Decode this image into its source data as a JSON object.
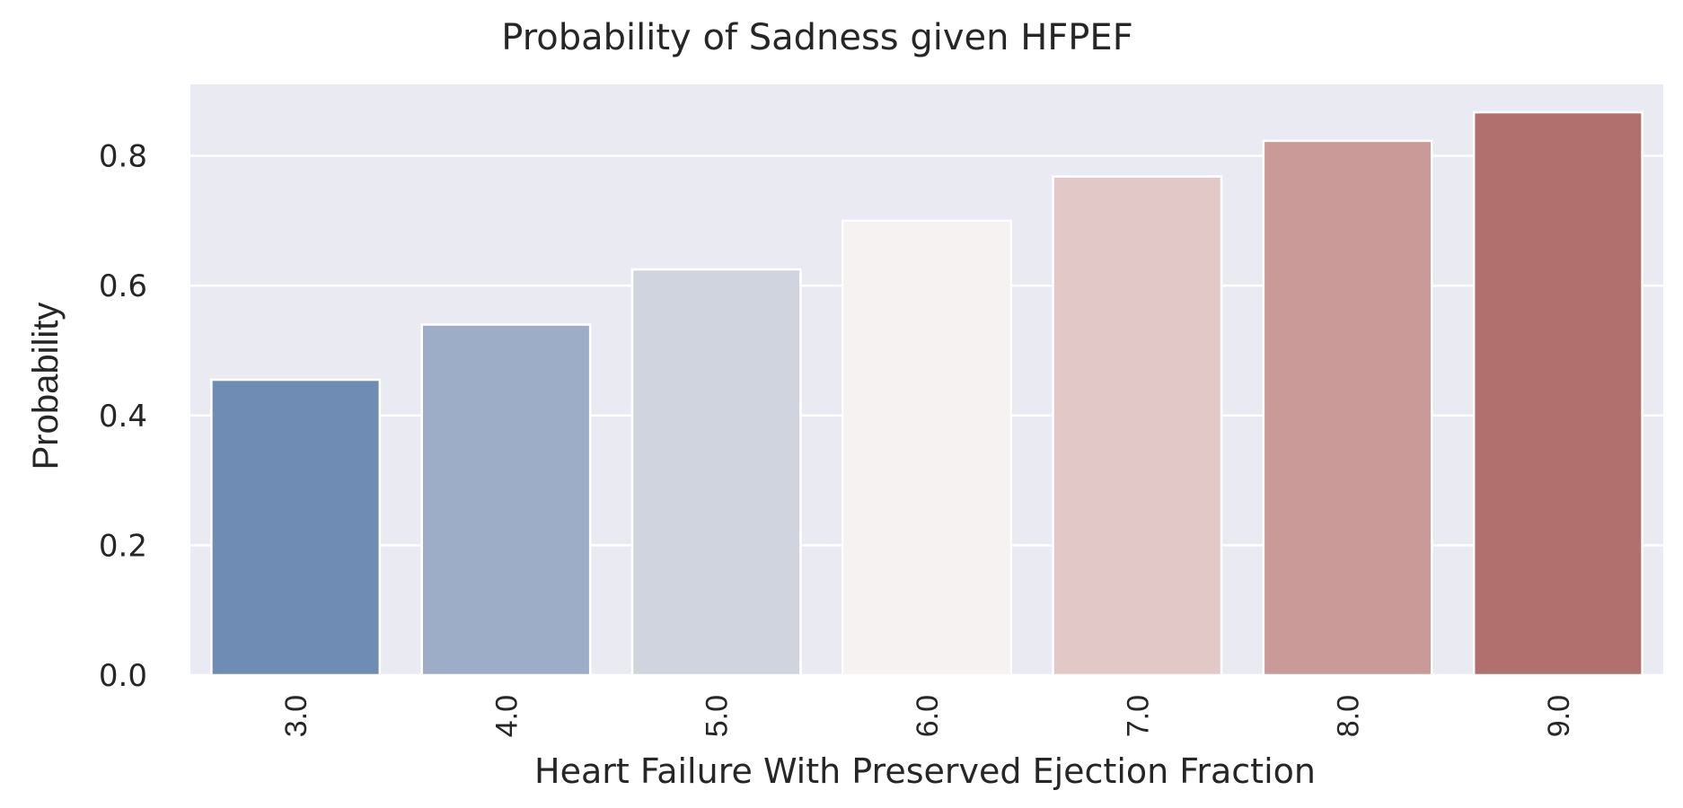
{
  "chart_data": {
    "type": "bar",
    "title": "Probability of Sadness given HFPEF",
    "xlabel": "Heart Failure With Preserved Ejection Fraction",
    "ylabel": "Probability",
    "categories": [
      "3.0",
      "4.0",
      "5.0",
      "6.0",
      "7.0",
      "8.0",
      "9.0"
    ],
    "values": [
      0.455,
      0.54,
      0.625,
      0.7,
      0.768,
      0.823,
      0.867
    ],
    "colors": [
      "#6e8cb4",
      "#9dadc7",
      "#cfd4de",
      "#f7f2f2",
      "#e3c8c8",
      "#c99a98",
      "#b1706d"
    ],
    "ylim": [
      0,
      0.91
    ],
    "yticks": [
      0.0,
      0.2,
      0.4,
      0.6,
      0.8
    ],
    "ytick_labels": [
      "0.0",
      "0.2",
      "0.4",
      "0.6",
      "0.8"
    ],
    "grid": true,
    "background": "#eaeaf2",
    "legend": "none"
  }
}
